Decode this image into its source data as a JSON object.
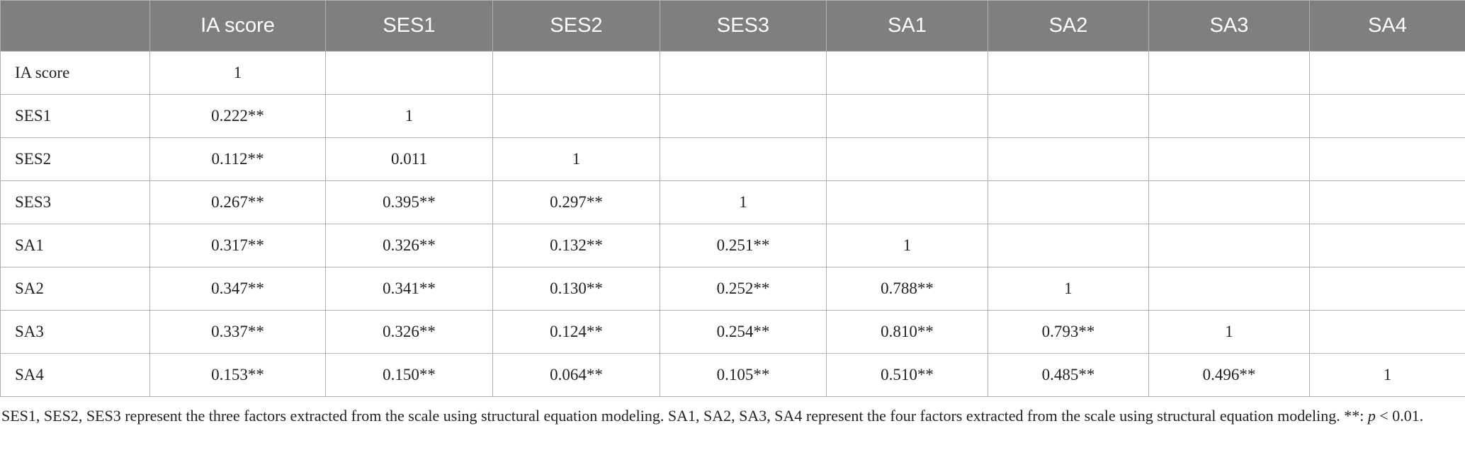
{
  "table": {
    "header": [
      "",
      "IA score",
      "SES1",
      "SES2",
      "SES3",
      "SA1",
      "SA2",
      "SA3",
      "SA4"
    ],
    "rows": [
      {
        "label": "IA score",
        "cells": [
          "1",
          null,
          null,
          null,
          null,
          null,
          null,
          null
        ]
      },
      {
        "label": "SES1",
        "cells": [
          "0.222**",
          "1",
          null,
          null,
          null,
          null,
          null,
          null
        ]
      },
      {
        "label": "SES2",
        "cells": [
          "0.112**",
          "0.011",
          "1",
          null,
          null,
          null,
          null,
          null
        ]
      },
      {
        "label": "SES3",
        "cells": [
          "0.267**",
          "0.395**",
          "0.297**",
          "1",
          null,
          null,
          null,
          null
        ]
      },
      {
        "label": "SA1",
        "cells": [
          "0.317**",
          "0.326**",
          "0.132**",
          "0.251**",
          "1",
          null,
          null,
          null
        ]
      },
      {
        "label": "SA2",
        "cells": [
          "0.347**",
          "0.341**",
          "0.130**",
          "0.252**",
          "0.788**",
          "1",
          null,
          null
        ]
      },
      {
        "label": "SA3",
        "cells": [
          "0.337**",
          "0.326**",
          "0.124**",
          "0.254**",
          "0.810**",
          "0.793**",
          "1",
          null
        ]
      },
      {
        "label": "SA4",
        "cells": [
          "0.153**",
          "0.150**",
          "0.064**",
          "0.105**",
          "0.510**",
          "0.485**",
          "0.496**",
          "1"
        ]
      }
    ],
    "footnote": {
      "before": "SES1, SES2, SES3 represent the three factors extracted from the scale using structural equation modeling. SA1, SA2, SA3, SA4 represent the four factors extracted from the scale using structural equation modeling. **: ",
      "italic": "p",
      "after": " < 0.01."
    }
  }
}
